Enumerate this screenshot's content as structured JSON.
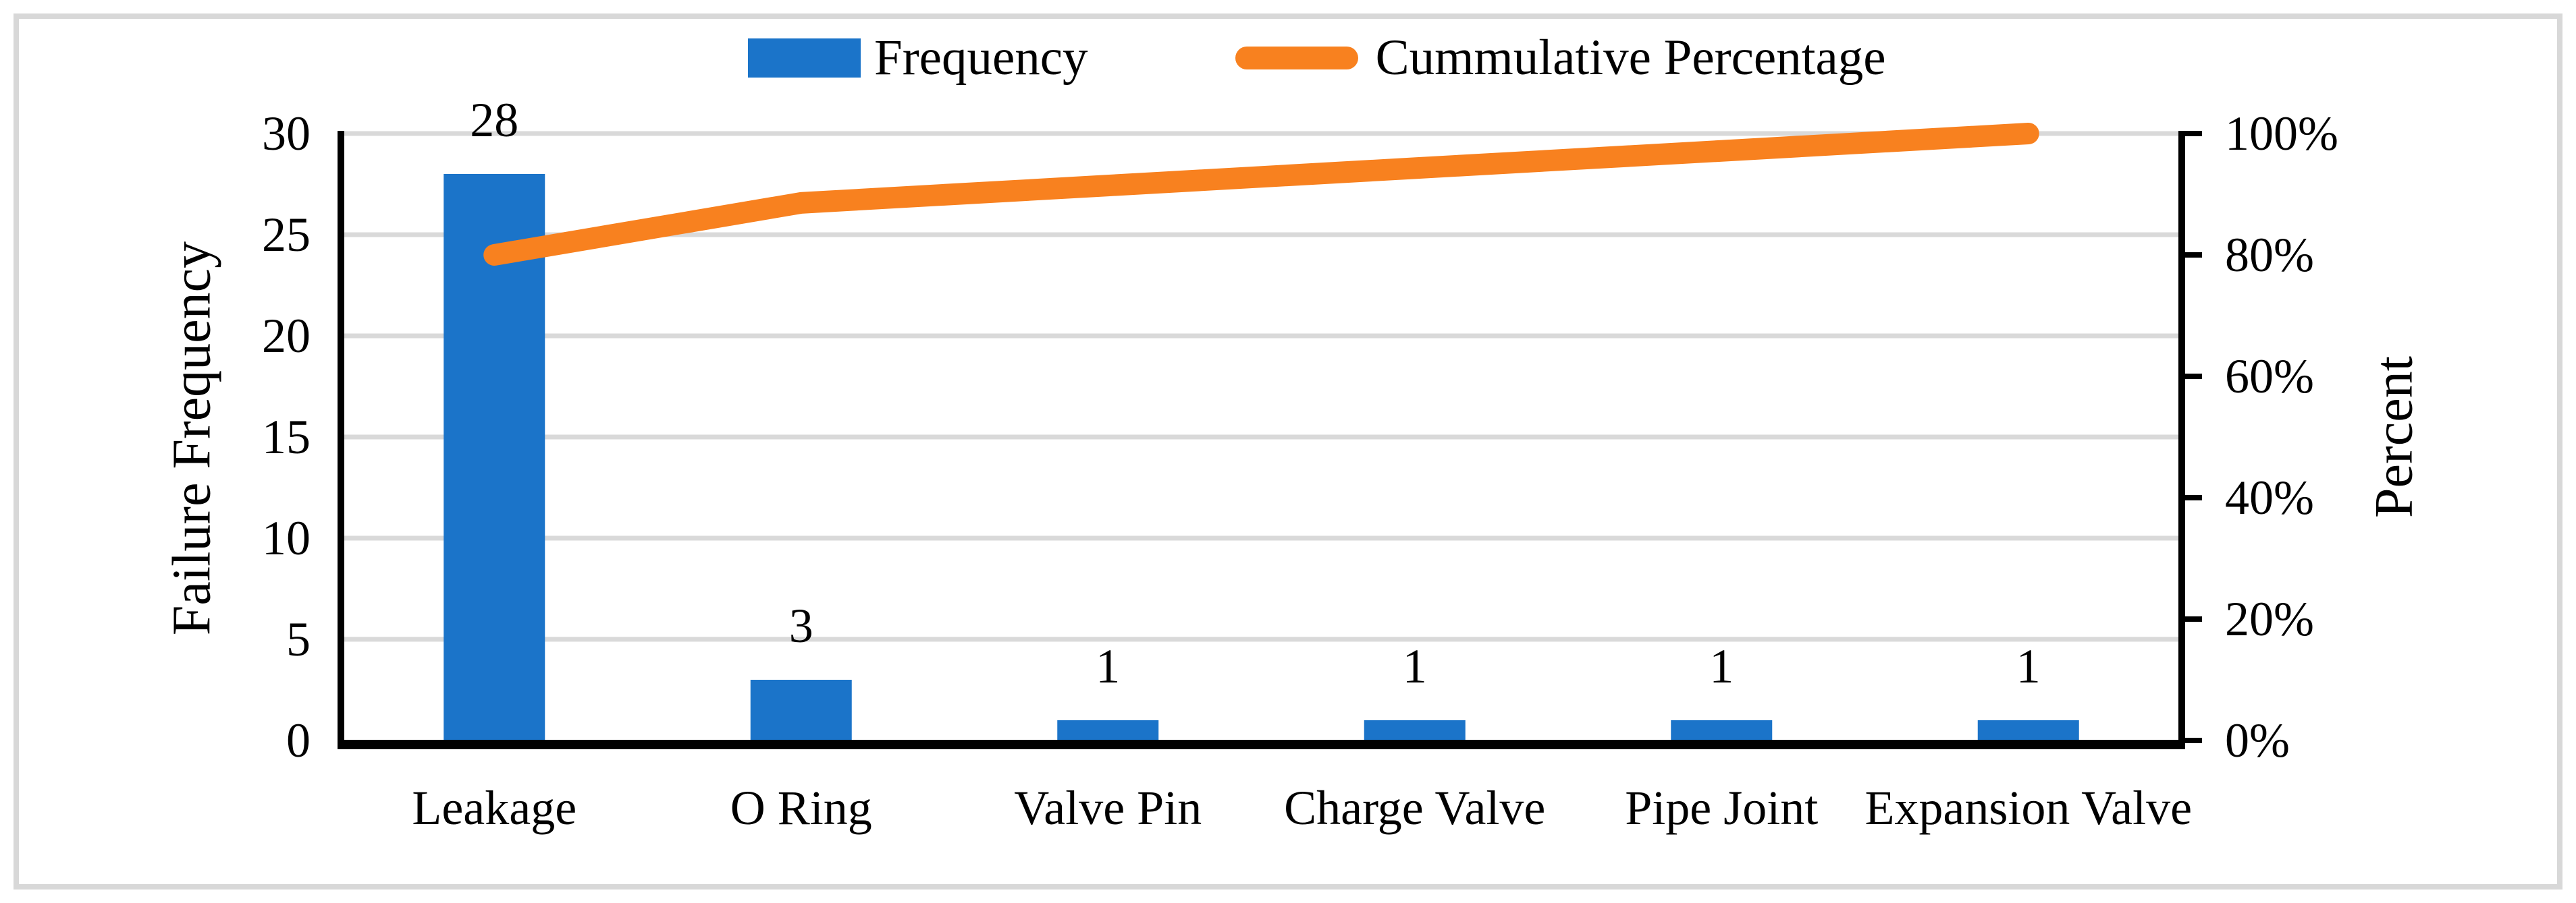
{
  "chart_data": {
    "type": "pareto-bar-line-combo",
    "categories": [
      "Leakage",
      "O Ring",
      "Valve Pin",
      "Charge Valve",
      "Pipe Joint",
      "Expansion Valve"
    ],
    "series": [
      {
        "name": "Frequency",
        "type": "bar",
        "axis": "left",
        "values": [
          28,
          3,
          1,
          1,
          1,
          1
        ],
        "data_labels": [
          "28",
          "3",
          "1",
          "1",
          "1",
          "1"
        ],
        "color": "#1B74C9"
      },
      {
        "name": "Cummulative Percentage",
        "type": "line",
        "axis": "right",
        "values_percent": [
          80,
          88.57,
          91.43,
          94.29,
          97.14,
          100
        ],
        "color": "#F8811F"
      }
    ],
    "left_axis": {
      "title": "Failure Frequency",
      "min": 0,
      "max": 30,
      "tick_step": 5,
      "tick_labels_top_to_bottom": [
        "30",
        "25",
        "20",
        "15",
        "10",
        "5",
        "0"
      ]
    },
    "right_axis": {
      "title": "Percent",
      "min": 0,
      "max": 100,
      "tick_step": 20,
      "tick_labels_top_to_bottom": [
        "100%",
        "80%",
        "60%",
        "40%",
        "20%",
        "0%"
      ]
    },
    "legend": {
      "position": "top-center",
      "items": [
        {
          "label": "Frequency",
          "swatch": "bar",
          "color": "#1B74C9"
        },
        {
          "label": "Cummulative Percentage",
          "swatch": "line",
          "color": "#F8811F"
        }
      ]
    },
    "grid": {
      "horizontal": true,
      "color": "#D9D9D9"
    },
    "axis_color": "#000000",
    "text_color": "#000000",
    "frame_color": "#D8D8D8",
    "background": "#FFFFFF"
  }
}
